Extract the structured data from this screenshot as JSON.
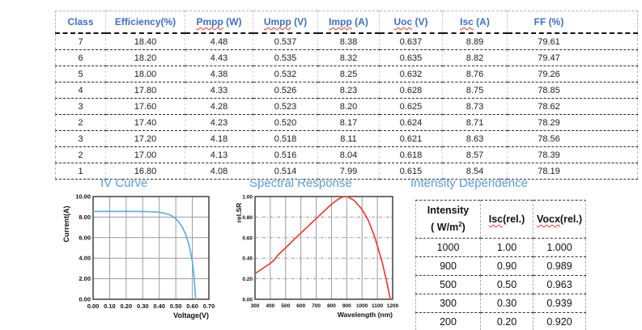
{
  "colors": {
    "table_header_blue": "#3f6fc1",
    "section_title_blue": "#5b9bd5",
    "iv_curve_blue": "#5fb0e3",
    "sr_curve_red": "#e8403a",
    "grid_gray": "#9a9a9a",
    "spellcheck_red": "#e03c31"
  },
  "main_table": {
    "headers": [
      {
        "wavy": "",
        "text": "Class"
      },
      {
        "wavy": "",
        "text": "Efficiency(%)"
      },
      {
        "wavy": "Pmpp",
        "text": " (W)"
      },
      {
        "wavy": "Umpp",
        "text": " (V)"
      },
      {
        "wavy": "Impp",
        "text": " (A)"
      },
      {
        "wavy": "Uoc",
        "text": " (V)"
      },
      {
        "wavy": "Isc",
        "text": " (A)"
      },
      {
        "wavy": "",
        "text": "FF (%)"
      }
    ],
    "rows": [
      [
        "7",
        "18.40",
        "4.48",
        "0.537",
        "8.38",
        "0.637",
        "8.89",
        "79.61"
      ],
      [
        "6",
        "18.20",
        "4.43",
        "0.535",
        "8.32",
        "0.635",
        "8.82",
        "79.47"
      ],
      [
        "5",
        "18.00",
        "4.38",
        "0.532",
        "8.25",
        "0.632",
        "8.76",
        "79.26"
      ],
      [
        "4",
        "17.80",
        "4.33",
        "0.526",
        "8.23",
        "0.628",
        "8.75",
        "78.85"
      ],
      [
        "3",
        "17.60",
        "4.28",
        "0.523",
        "8.20",
        "0.625",
        "8.73",
        "78.62"
      ],
      [
        "2",
        "17.40",
        "4.23",
        "0.520",
        "8.17",
        "0.624",
        "8.71",
        "78.29"
      ],
      [
        "3",
        "17.20",
        "4.18",
        "0.518",
        "8.11",
        "0.621",
        "8.63",
        "78.56"
      ],
      [
        "2",
        "17.00",
        "4.13",
        "0.516",
        "8.04",
        "0.618",
        "8.57",
        "78.39"
      ],
      [
        "1",
        "16.80",
        "4.08",
        "0.514",
        "7.99",
        "0.615",
        "8.54",
        "78.19"
      ]
    ]
  },
  "sections": {
    "iv_title": "IV Curve",
    "sr_title": "Spectral Response",
    "intensity_title": "Intensity Dependence"
  },
  "intensity_table": {
    "header_intensity": {
      "line1": "Intensity",
      "line2_pre": "( W/m",
      "sup": "2",
      "line2_post": ")"
    },
    "header_isc": {
      "wavy": "Isc",
      "text": "(rel.)"
    },
    "header_voc": {
      "wavy": "Vocx",
      "text": "(rel.)"
    },
    "rows": [
      [
        "1000",
        "1.00",
        "1.000"
      ],
      [
        "900",
        "0.90",
        "0.989"
      ],
      [
        "500",
        "0.50",
        "0.963"
      ],
      [
        "300",
        "0.30",
        "0.939"
      ],
      [
        "200",
        "0.20",
        "0.920"
      ]
    ]
  },
  "chart_data": [
    {
      "id": "iv-chart",
      "type": "line",
      "title": "IV Curve",
      "xlabel": "Voltage(V)",
      "ylabel": "Current(A)",
      "xlim": [
        0,
        0.7
      ],
      "ylim": [
        0,
        10
      ],
      "x_ticks": [
        "0.00",
        "0.10",
        "0.20",
        "0.30",
        "0.40",
        "0.50",
        "0.60",
        "0.70"
      ],
      "y_ticks": [
        "0.00",
        "2.00",
        "4.00",
        "6.00",
        "8.00",
        "10.00"
      ],
      "grid": true,
      "legend": false,
      "color": "#5fb0e3",
      "points": [
        [
          0,
          8.55
        ],
        [
          0.05,
          8.55
        ],
        [
          0.1,
          8.55
        ],
        [
          0.15,
          8.55
        ],
        [
          0.2,
          8.55
        ],
        [
          0.25,
          8.55
        ],
        [
          0.3,
          8.54
        ],
        [
          0.35,
          8.52
        ],
        [
          0.4,
          8.47
        ],
        [
          0.44,
          8.35
        ],
        [
          0.47,
          8.18
        ],
        [
          0.5,
          7.85
        ],
        [
          0.52,
          7.5
        ],
        [
          0.54,
          7.0
        ],
        [
          0.56,
          6.3
        ],
        [
          0.58,
          5.3
        ],
        [
          0.6,
          3.7
        ],
        [
          0.61,
          2.3
        ],
        [
          0.615,
          1.2
        ],
        [
          0.62,
          0
        ]
      ]
    },
    {
      "id": "sr-chart",
      "type": "line",
      "title": "Spectral Response",
      "xlabel": "Wavelength (nm)",
      "ylabel": "rel.SR",
      "xlim": [
        300,
        1200
      ],
      "ylim": [
        0,
        1.0
      ],
      "x_ticks": [
        "300",
        "400",
        "500",
        "600",
        "700",
        "800",
        "900",
        "1000",
        "1100",
        "1200"
      ],
      "y_ticks": [
        "0.00",
        "0.20",
        "0.40",
        "0.60",
        "0.80",
        "1.00"
      ],
      "grid": true,
      "legend": false,
      "color": "#e8403a",
      "points": [
        [
          300,
          0.25
        ],
        [
          350,
          0.3
        ],
        [
          400,
          0.35
        ],
        [
          430,
          0.39
        ],
        [
          450,
          0.43
        ],
        [
          500,
          0.5
        ],
        [
          550,
          0.575
        ],
        [
          600,
          0.645
        ],
        [
          650,
          0.715
        ],
        [
          700,
          0.785
        ],
        [
          750,
          0.855
        ],
        [
          800,
          0.925
        ],
        [
          840,
          0.97
        ],
        [
          870,
          0.995
        ],
        [
          890,
          1.0
        ],
        [
          910,
          0.995
        ],
        [
          950,
          0.96
        ],
        [
          1000,
          0.875
        ],
        [
          1040,
          0.77
        ],
        [
          1080,
          0.62
        ],
        [
          1100,
          0.52
        ],
        [
          1130,
          0.37
        ],
        [
          1160,
          0.18
        ],
        [
          1185,
          0.0
        ]
      ]
    }
  ]
}
